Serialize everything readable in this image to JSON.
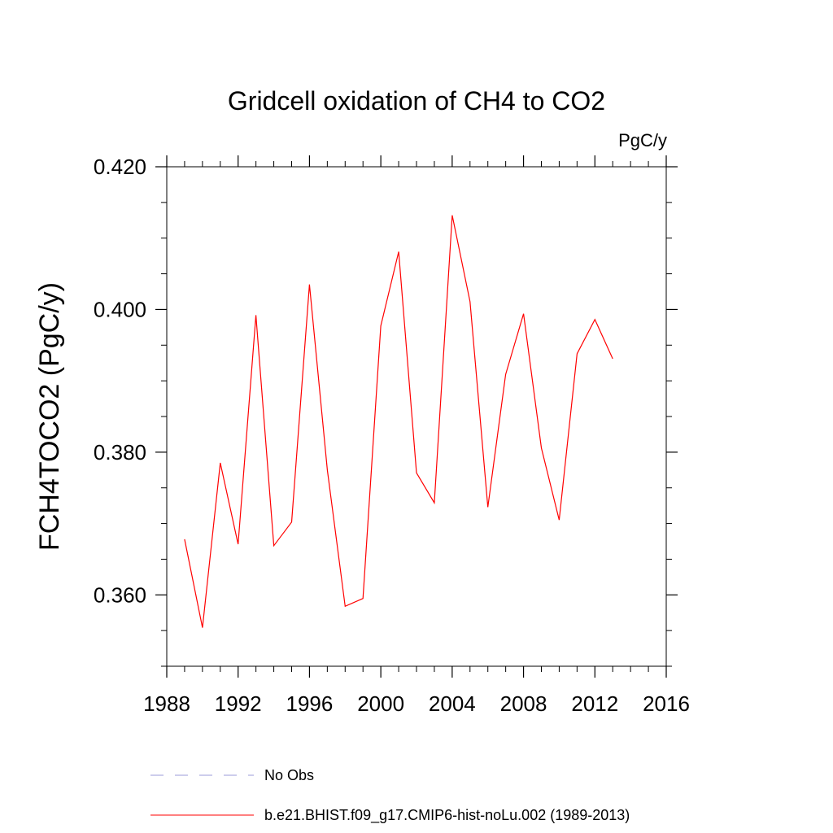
{
  "chart_data": {
    "type": "line",
    "title": "Gridcell oxidation of CH4 to CO2",
    "units_label": "PgC/y",
    "ylabel": "FCH4TOCO2  (PgC/y)",
    "xlabel": "",
    "xlim": [
      1988,
      2016
    ],
    "ylim": [
      0.35,
      0.42
    ],
    "xticks": [
      1988,
      1992,
      1996,
      2000,
      2004,
      2008,
      2012,
      2016
    ],
    "xtick_labels": [
      "1988",
      "1992",
      "1996",
      "2000",
      "2004",
      "2008",
      "2012",
      "2016"
    ],
    "yticks": [
      0.36,
      0.38,
      0.4,
      0.42
    ],
    "ytick_labels": [
      "0.360",
      "0.380",
      "0.400",
      "0.420"
    ],
    "grid": false,
    "legend_position": "bottom",
    "series": [
      {
        "name": "b.e21.BHIST.f09_g17.CMIP6-hist-noLu.002 (1989-2013)",
        "color": "#ff0000",
        "style": "solid",
        "x": [
          1989,
          1990,
          1991,
          1992,
          1993,
          1994,
          1995,
          1996,
          1997,
          1998,
          1999,
          2000,
          2001,
          2002,
          2003,
          2004,
          2005,
          2006,
          2007,
          2008,
          2009,
          2010,
          2011,
          2012,
          2013
        ],
        "y": [
          0.3678,
          0.3554,
          0.3785,
          0.3671,
          0.3992,
          0.3669,
          0.3702,
          0.4035,
          0.3775,
          0.3584,
          0.3595,
          0.3977,
          0.4081,
          0.3771,
          0.3729,
          0.4132,
          0.4011,
          0.3723,
          0.3909,
          0.3994,
          0.3806,
          0.3705,
          0.3938,
          0.3986,
          0.3931
        ]
      }
    ],
    "legend": [
      {
        "label": "No Obs",
        "color": "#9b9bd8",
        "style": "dashed"
      },
      {
        "label": "b.e21.BHIST.f09_g17.CMIP6-hist-noLu.002 (1989-2013)",
        "color": "#ff0000",
        "style": "solid"
      }
    ]
  }
}
